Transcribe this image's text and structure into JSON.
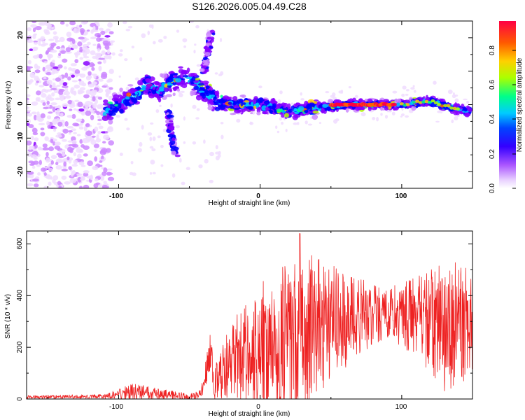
{
  "title": "S126.2026.005.04.49.C28",
  "chart_data": [
    {
      "type": "heatmap",
      "name": "spectrogram",
      "xlabel": "Height of straight line (km)",
      "ylabel": "Frequency (Hz)",
      "xlim": [
        -165,
        150
      ],
      "ylim": [
        -25,
        25
      ],
      "xticks": [
        "-100",
        "0",
        "100"
      ],
      "yticks": [
        "-20",
        "-10",
        "0",
        "10",
        "20"
      ],
      "colorbar": {
        "label": "Normalized spectral amplitude",
        "range": [
          0,
          0.97
        ],
        "ticks": [
          "0.0",
          "0.2",
          "0.4",
          "0.6",
          "0.8"
        ],
        "colors": [
          "#f0dcff",
          "#cc88ff",
          "#8800ff",
          "#0000ff",
          "#00c8ff",
          "#00ff80",
          "#b4ff00",
          "#ffd000",
          "#ff6000",
          "#ff0040"
        ]
      },
      "ridge": [
        {
          "x": -108,
          "f": -2
        },
        {
          "x": -100,
          "f": 0
        },
        {
          "x": -90,
          "f": 2
        },
        {
          "x": -80,
          "f": 6
        },
        {
          "x": -72,
          "f": 4
        },
        {
          "x": -62,
          "f": 7
        },
        {
          "x": -50,
          "f": 8
        },
        {
          "x": -40,
          "f": 4
        },
        {
          "x": -30,
          "f": 1
        },
        {
          "x": -20,
          "f": 0
        },
        {
          "x": 0,
          "f": 0
        },
        {
          "x": 20,
          "f": -2
        },
        {
          "x": 40,
          "f": -1
        },
        {
          "x": 60,
          "f": 0
        },
        {
          "x": 80,
          "f": 0
        },
        {
          "x": 100,
          "f": 0
        },
        {
          "x": 120,
          "f": 1
        },
        {
          "x": 145,
          "f": -2
        }
      ],
      "strong_band": {
        "x_start": 50,
        "x_end": 95,
        "f": 0,
        "amplitude": 0.95
      },
      "branches": [
        {
          "from_x": -65,
          "to_x": -60,
          "f_from": -2,
          "f_to": -15
        },
        {
          "from_x": -40,
          "to_x": -35,
          "f_from": 10,
          "f_to": 21
        }
      ]
    },
    {
      "type": "line",
      "name": "snr",
      "xlabel": "Height of straight line (km)",
      "ylabel": "SNR (10 * v/v)",
      "xlim": [
        -165,
        150
      ],
      "ylim": [
        0,
        650
      ],
      "xticks": [
        "-100",
        "0",
        "100"
      ],
      "yticks": [
        "0",
        "200",
        "400",
        "600"
      ],
      "color": "#ee2222",
      "envelope": [
        {
          "x": -165,
          "base": 8,
          "amp": 6
        },
        {
          "x": -110,
          "base": 10,
          "amp": 8
        },
        {
          "x": -90,
          "base": 30,
          "amp": 30
        },
        {
          "x": -75,
          "base": 20,
          "amp": 25
        },
        {
          "x": -50,
          "base": 10,
          "amp": 10
        },
        {
          "x": -42,
          "base": 15,
          "amp": 20
        },
        {
          "x": -35,
          "base": 180,
          "amp": 80
        },
        {
          "x": -32,
          "base": 60,
          "amp": 70
        },
        {
          "x": -20,
          "base": 150,
          "amp": 150
        },
        {
          "x": 0,
          "base": 200,
          "amp": 250
        },
        {
          "x": 30,
          "base": 250,
          "amp": 330
        },
        {
          "x": 50,
          "base": 300,
          "amp": 220
        },
        {
          "x": 90,
          "base": 330,
          "amp": 100
        },
        {
          "x": 110,
          "base": 320,
          "amp": 150
        },
        {
          "x": 130,
          "base": 280,
          "amp": 260
        },
        {
          "x": 150,
          "base": 300,
          "amp": 220
        }
      ],
      "peak": {
        "x": 28,
        "y": 640
      }
    }
  ]
}
